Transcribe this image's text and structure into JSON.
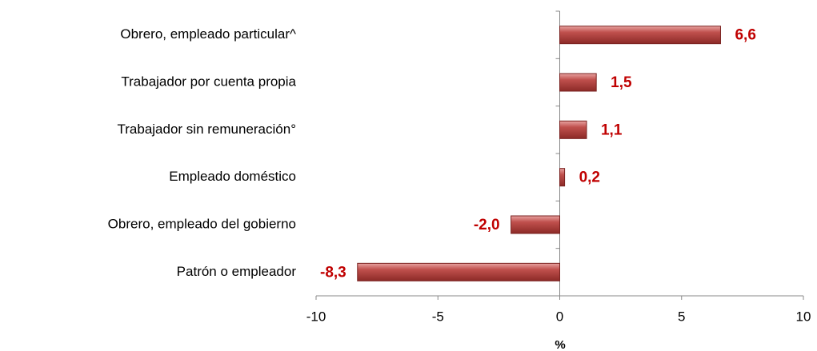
{
  "chart_data": {
    "type": "barh",
    "categories": [
      "Obrero, empleado particular^",
      "Trabajador por cuenta propia",
      "Trabajador sin remuneración°",
      "Empleado doméstico",
      "Obrero, empleado del gobierno",
      "Patrón o empleador"
    ],
    "values": [
      6.6,
      1.5,
      1.1,
      0.2,
      -2.0,
      -8.3
    ],
    "value_labels": [
      "6,6",
      "1,5",
      "1,1",
      "0,2",
      "-2,0",
      "-8,3"
    ],
    "color": "#c0504d",
    "xlim": [
      -10,
      10
    ],
    "xticks": [
      -10,
      -5,
      0,
      5,
      10
    ],
    "xlabel": "%"
  }
}
